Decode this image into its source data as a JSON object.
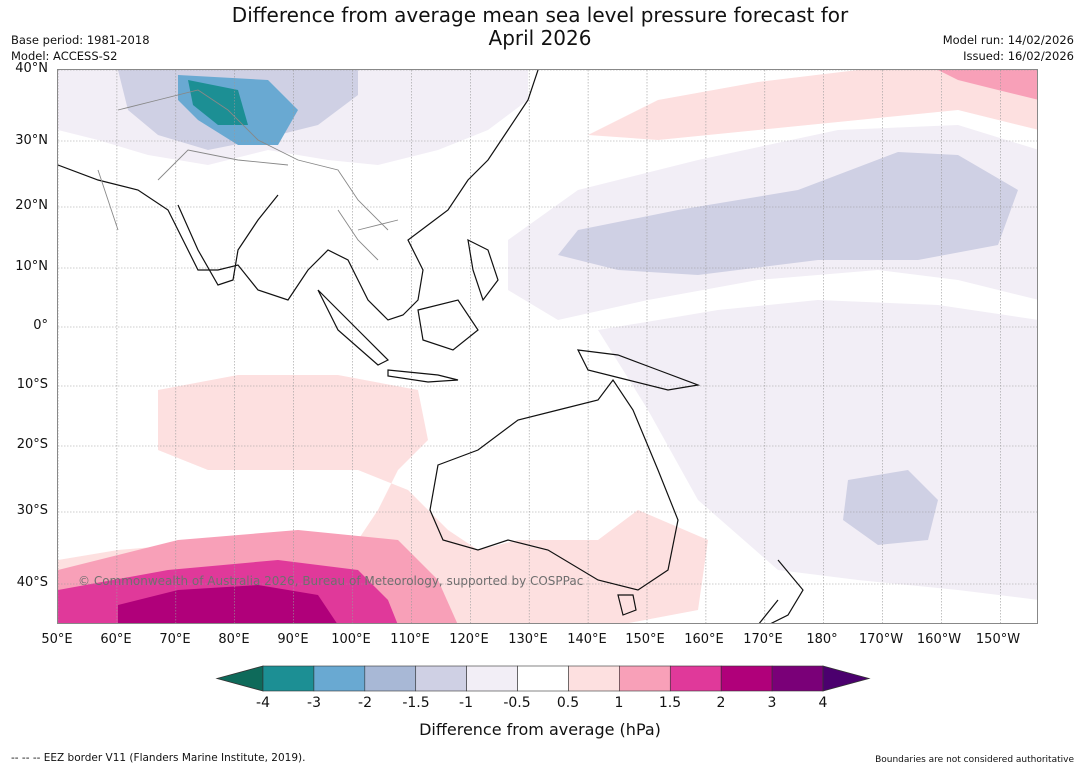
{
  "header": {
    "title_line1": "Difference from average mean sea level pressure forecast for",
    "title_line2": "April 2026",
    "base_period": "Base period: 1981-2018",
    "model": "Model: ACCESS-S2",
    "model_run": "Model run: 14/02/2026",
    "issued": "Issued: 16/02/2026"
  },
  "map": {
    "lat_labels": [
      "40°N",
      "30°N",
      "20°N",
      "10°N",
      "0°",
      "10°S",
      "20°S",
      "30°S",
      "40°S"
    ],
    "lon_labels": [
      "50°E",
      "60°E",
      "70°E",
      "80°E",
      "90°E",
      "100°E",
      "110°E",
      "120°E",
      "130°E",
      "140°E",
      "150°E",
      "160°E",
      "170°E",
      "180°",
      "170°W",
      "160°W",
      "150°W"
    ],
    "copyright": "© Commonwealth of Australia 2026, Bureau of Meteorology, supported by COSPPac",
    "anomaly_regions": [
      {
        "name": "himalaya-low-core",
        "level": "-4"
      },
      {
        "name": "himalaya-low",
        "level": "-3"
      },
      {
        "name": "north-pacific-low",
        "level": "-1.5"
      },
      {
        "name": "southern-indian-ocean-high",
        "level": "0.5"
      },
      {
        "name": "southern-ocean-high-core",
        "level": "3"
      },
      {
        "name": "south-pacific-low",
        "level": "-1.5"
      }
    ]
  },
  "colorbar": {
    "title": "Difference from average (hPa)",
    "tick_labels": [
      "-4",
      "-3",
      "-2",
      "-1.5",
      "-1",
      "-0.5",
      "0.5",
      "1",
      "1.5",
      "2",
      "3",
      "4"
    ],
    "colors": [
      "#1c8f94",
      "#69a9d2",
      "#a8b8d6",
      "#cfd0e4",
      "#f2eef6",
      "#ffffff",
      "#fde0e0",
      "#f8a0b8",
      "#e0399a",
      "#b0007a",
      "#7a0078"
    ],
    "under_color": "#0e6a5a",
    "over_color": "#4b006e"
  },
  "footer": {
    "eez_note": "--  --  -- EEZ border V11 (Flanders Marine Institute, 2019).",
    "boundaries_note": "Boundaries are not considered authoritative"
  }
}
